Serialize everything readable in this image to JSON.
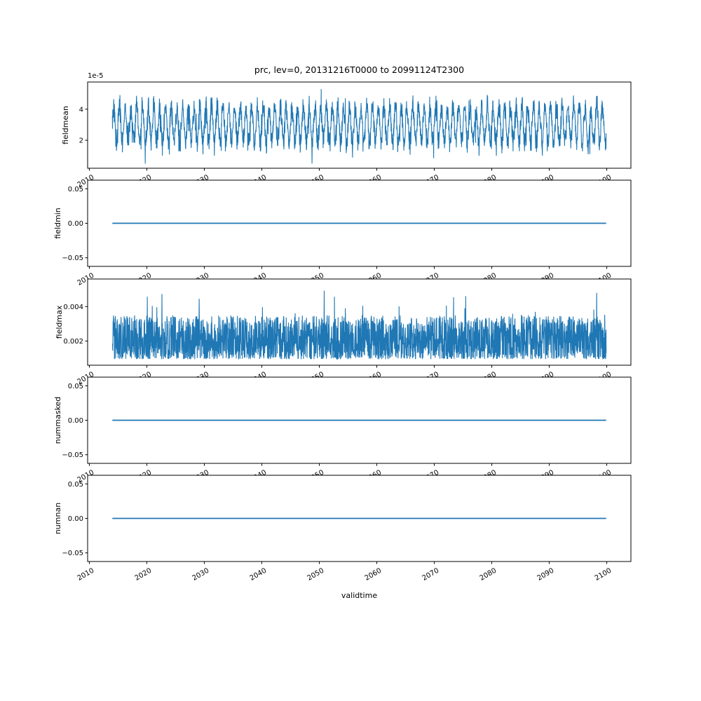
{
  "figure": {
    "title": "prc, lev=0, 20131216T0000 to 20991124T2300",
    "xlabel": "validtime",
    "background_color": "#ffffff",
    "text_color": "#000000",
    "axes_edge_color": "#000000",
    "line_color": "#1f77b4"
  },
  "chart_data": {
    "type": "line",
    "title": "prc, lev=0, 20131216T0000 to 20991124T2300",
    "xlabel": "validtime",
    "legend": "none",
    "grid": false,
    "x_axis": {
      "xlim": [
        2009.7,
        2104.2
      ],
      "data_start": 2014.0,
      "data_end": 2099.9,
      "xticks": [
        {
          "value": 2010,
          "label": "2010"
        },
        {
          "value": 2020,
          "label": "2020"
        },
        {
          "value": 2030,
          "label": "2030"
        },
        {
          "value": 2040,
          "label": "2040"
        },
        {
          "value": 2050,
          "label": "2050"
        },
        {
          "value": 2060,
          "label": "2060"
        },
        {
          "value": 2070,
          "label": "2070"
        },
        {
          "value": 2080,
          "label": "2080"
        },
        {
          "value": 2090,
          "label": "2090"
        },
        {
          "value": 2100,
          "label": "2100"
        }
      ],
      "tick_label_rotation_deg": 30
    },
    "subplots": [
      {
        "ylabel": "fieldmean",
        "offset_label": "1e-5",
        "ylim": [
          2e-06,
          5.75e-05
        ],
        "yticks": [
          {
            "value": 2e-05,
            "label": "2"
          },
          {
            "value": 4e-05,
            "label": "4"
          }
        ],
        "series": {
          "name": "fieldmean",
          "pattern": "seasonal-noise",
          "baseline": 3e-05,
          "seasonal_amplitude": 1.15e-05,
          "noise_amplitude": 9e-06,
          "seasonal_period_years": 1,
          "observed_min": 5e-06,
          "observed_max": 5.3e-05
        }
      },
      {
        "ylabel": "fieldmin",
        "ylim": [
          -0.0625,
          0.0625
        ],
        "yticks": [
          {
            "value": 0.05,
            "label": "0.05"
          },
          {
            "value": 0,
            "label": "0.00"
          },
          {
            "value": -0.05,
            "label": "−0.05"
          }
        ],
        "series": {
          "name": "fieldmin",
          "pattern": "constant",
          "value": 0
        }
      },
      {
        "ylabel": "fieldmax",
        "ylim": [
          0.0006,
          0.0056
        ],
        "yticks": [
          {
            "value": 0.004,
            "label": "0.004"
          },
          {
            "value": 0.002,
            "label": "0.002"
          }
        ],
        "series": {
          "name": "fieldmax",
          "pattern": "random-band",
          "floor": 0.00095,
          "typical_max": 0.0035,
          "spike_max": 0.0052
        }
      },
      {
        "ylabel": "nummasked",
        "ylim": [
          -0.0625,
          0.0625
        ],
        "yticks": [
          {
            "value": 0.05,
            "label": "0.05"
          },
          {
            "value": 0,
            "label": "0.00"
          },
          {
            "value": -0.05,
            "label": "−0.05"
          }
        ],
        "series": {
          "name": "nummasked",
          "pattern": "constant",
          "value": 0
        }
      },
      {
        "ylabel": "numnan",
        "ylim": [
          -0.0625,
          0.0625
        ],
        "yticks": [
          {
            "value": 0.05,
            "label": "0.05"
          },
          {
            "value": 0,
            "label": "0.00"
          },
          {
            "value": -0.05,
            "label": "−0.05"
          }
        ],
        "series": {
          "name": "numnan",
          "pattern": "constant",
          "value": 0
        }
      }
    ]
  }
}
